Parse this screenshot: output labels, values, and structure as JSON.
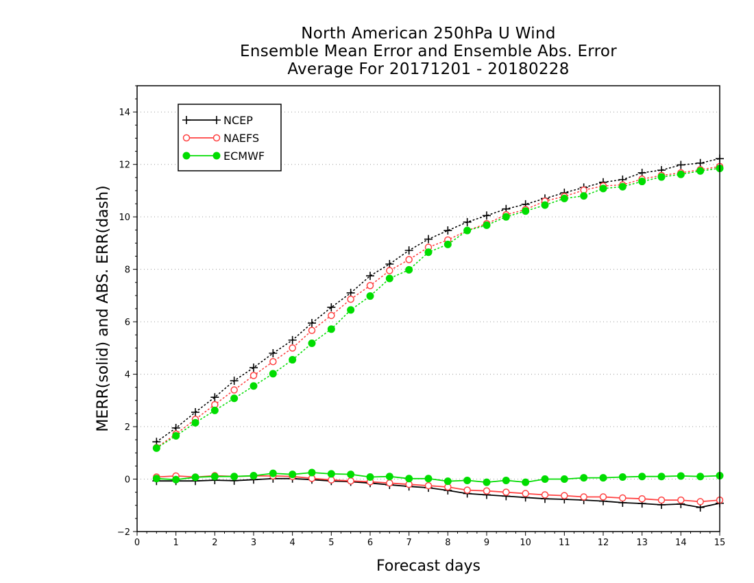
{
  "chart_data": {
    "type": "line",
    "title_lines": [
      "North American 250hPa U Wind",
      "Ensemble Mean Error and Ensemble Abs. Error",
      "Average For 20171201 - 20180228"
    ],
    "xlabel": "Forecast days",
    "ylabel": "MERR(solid) and ABS. ERR(dash)",
    "xlim": [
      0,
      15
    ],
    "ylim": [
      -2,
      15
    ],
    "x_ticks": [
      0,
      1,
      2,
      3,
      4,
      5,
      6,
      7,
      8,
      9,
      10,
      11,
      12,
      13,
      14,
      15
    ],
    "y_ticks": [
      -2,
      0,
      2,
      4,
      6,
      8,
      10,
      12,
      14
    ],
    "y_grid": true,
    "legend_position": "top-left",
    "x": [
      0.5,
      1,
      1.5,
      2,
      2.5,
      3,
      3.5,
      4,
      4.5,
      5,
      5.5,
      6,
      6.5,
      7,
      7.5,
      8,
      8.5,
      9,
      9.5,
      10,
      10.5,
      11,
      11.5,
      12,
      12.5,
      13,
      13.5,
      14,
      14.5,
      15
    ],
    "series": [
      {
        "name": "NCEP",
        "color": "#000000",
        "marker": "plus",
        "abs_err": [
          1.42,
          1.95,
          2.55,
          3.12,
          3.75,
          4.25,
          4.8,
          5.3,
          5.95,
          6.55,
          7.1,
          7.75,
          8.2,
          8.72,
          9.15,
          9.48,
          9.8,
          10.05,
          10.3,
          10.48,
          10.7,
          10.92,
          11.12,
          11.32,
          11.42,
          11.68,
          11.78,
          11.98,
          12.05,
          12.22
        ],
        "mean_err": [
          -0.07,
          -0.07,
          -0.07,
          -0.04,
          -0.06,
          -0.02,
          0.02,
          0.02,
          -0.02,
          -0.07,
          -0.1,
          -0.15,
          -0.22,
          -0.28,
          -0.33,
          -0.43,
          -0.55,
          -0.6,
          -0.65,
          -0.7,
          -0.75,
          -0.77,
          -0.8,
          -0.84,
          -0.9,
          -0.93,
          -0.98,
          -0.95,
          -1.08,
          -0.92
        ]
      },
      {
        "name": "NAEFS",
        "color": "#ff4040",
        "marker": "open-circle",
        "abs_err": [
          1.2,
          1.72,
          2.28,
          2.84,
          3.4,
          3.95,
          4.48,
          5.0,
          5.67,
          6.24,
          6.86,
          7.38,
          7.95,
          8.37,
          8.84,
          9.12,
          9.48,
          9.74,
          10.08,
          10.28,
          10.6,
          10.78,
          11.02,
          11.18,
          11.22,
          11.44,
          11.58,
          11.68,
          11.8,
          11.92
        ],
        "mean_err": [
          0.08,
          0.12,
          0.08,
          0.13,
          0.1,
          0.12,
          0.12,
          0.1,
          0.03,
          -0.03,
          -0.07,
          -0.1,
          -0.15,
          -0.2,
          -0.25,
          -0.3,
          -0.42,
          -0.45,
          -0.5,
          -0.55,
          -0.6,
          -0.63,
          -0.68,
          -0.68,
          -0.72,
          -0.75,
          -0.8,
          -0.8,
          -0.86,
          -0.8
        ]
      },
      {
        "name": "ECMWF",
        "color": "#00dd00",
        "marker": "filled-circle",
        "abs_err": [
          1.18,
          1.65,
          2.15,
          2.62,
          3.08,
          3.55,
          4.02,
          4.55,
          5.18,
          5.72,
          6.45,
          6.98,
          7.65,
          7.98,
          8.65,
          8.95,
          9.48,
          9.68,
          10.0,
          10.22,
          10.45,
          10.7,
          10.8,
          11.08,
          11.15,
          11.35,
          11.52,
          11.62,
          11.75,
          11.85
        ],
        "mean_err": [
          0.02,
          -0.02,
          0.07,
          0.1,
          0.1,
          0.13,
          0.22,
          0.18,
          0.25,
          0.2,
          0.18,
          0.08,
          0.1,
          0.02,
          0.02,
          -0.08,
          -0.05,
          -0.12,
          -0.05,
          -0.12,
          0.0,
          0.0,
          0.05,
          0.05,
          0.08,
          0.1,
          0.1,
          0.12,
          0.1,
          0.13
        ]
      }
    ]
  }
}
